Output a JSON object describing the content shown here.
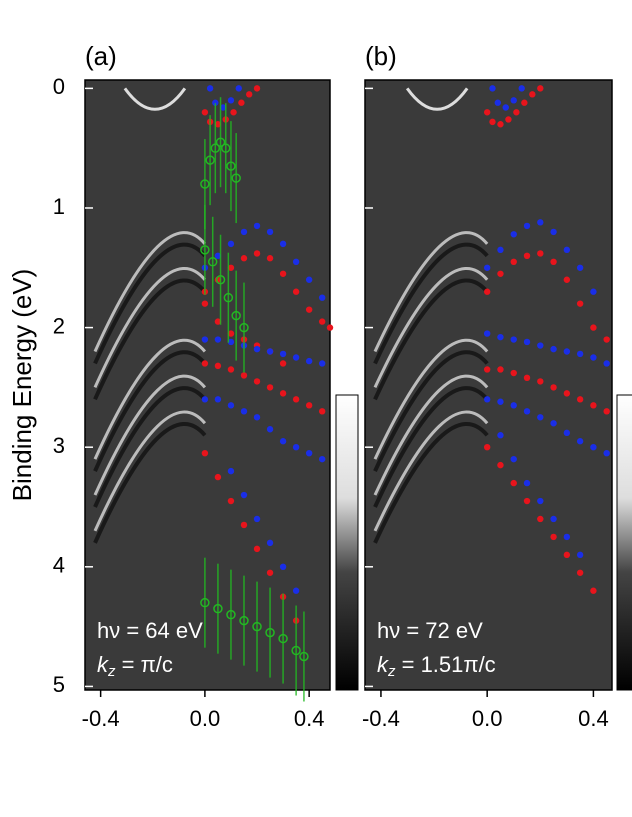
{
  "chart_data": [
    {
      "type": "scatter",
      "panel_label": "(a)",
      "y_label": "Binding Energy (eV)",
      "annotation_hv": "hν = 64 eV",
      "annotation_kz": [
        "k",
        "z",
        " = π/c"
      ],
      "xlim": [
        -0.46,
        0.48
      ],
      "ylim": [
        -0.07,
        5.03
      ],
      "y_reversed": true,
      "show_ytick_labels": true,
      "xticks": [
        -0.4,
        {
          "value": 0,
          "label": "0.0"
        },
        0.4
      ],
      "yticks": [
        0,
        1,
        2,
        3,
        4,
        5
      ],
      "series": [
        {
          "name": "red-top",
          "color": "#e8141c",
          "marker": "dot",
          "x": [
            0.0,
            0.02,
            0.05,
            0.08,
            0.11,
            0.14,
            0.17,
            0.2
          ],
          "y": [
            0.2,
            0.28,
            0.3,
            0.26,
            0.2,
            0.12,
            0.05,
            0.0
          ]
        },
        {
          "name": "blue-top",
          "color": "#1a2ee8",
          "marker": "dot",
          "x": [
            0.02,
            0.04,
            0.07,
            0.1,
            0.13
          ],
          "y": [
            0.0,
            0.12,
            0.16,
            0.1,
            0.0
          ]
        },
        {
          "name": "blue-1",
          "color": "#1a2ee8",
          "marker": "dot",
          "x": [
            0.0,
            0.05,
            0.1,
            0.15,
            0.2,
            0.25,
            0.3,
            0.35,
            0.4,
            0.45
          ],
          "y": [
            1.5,
            1.4,
            1.3,
            1.2,
            1.15,
            1.2,
            1.3,
            1.45,
            1.6,
            1.75
          ]
        },
        {
          "name": "red-1",
          "color": "#e8141c",
          "marker": "dot",
          "x": [
            0.0,
            0.05,
            0.1,
            0.15,
            0.2,
            0.25,
            0.3,
            0.35,
            0.4,
            0.45,
            0.48
          ],
          "y": [
            1.7,
            1.6,
            1.5,
            1.42,
            1.38,
            1.42,
            1.55,
            1.7,
            1.85,
            1.95,
            2.0
          ]
        },
        {
          "name": "red-2",
          "color": "#e8141c",
          "marker": "dot",
          "x": [
            0.0,
            0.05,
            0.1,
            0.15,
            0.2,
            0.25,
            0.3
          ],
          "y": [
            1.8,
            1.95,
            2.05,
            2.1,
            2.15,
            2.2,
            2.3
          ]
        },
        {
          "name": "blue-2",
          "color": "#1a2ee8",
          "marker": "dot",
          "x": [
            0.0,
            0.05,
            0.1,
            0.15,
            0.2,
            0.25,
            0.3,
            0.35,
            0.4,
            0.45
          ],
          "y": [
            2.1,
            2.1,
            2.12,
            2.15,
            2.18,
            2.2,
            2.22,
            2.25,
            2.28,
            2.3
          ]
        },
        {
          "name": "red-3",
          "color": "#e8141c",
          "marker": "dot",
          "x": [
            0.0,
            0.05,
            0.1,
            0.15,
            0.2,
            0.25,
            0.3,
            0.35,
            0.4,
            0.45
          ],
          "y": [
            2.3,
            2.32,
            2.35,
            2.4,
            2.45,
            2.5,
            2.55,
            2.6,
            2.65,
            2.7
          ]
        },
        {
          "name": "blue-3",
          "color": "#1a2ee8",
          "marker": "dot",
          "x": [
            0.0,
            0.05,
            0.1,
            0.15,
            0.2,
            0.25,
            0.3,
            0.35,
            0.4,
            0.45
          ],
          "y": [
            2.6,
            2.6,
            2.65,
            2.7,
            2.75,
            2.85,
            2.95,
            3.0,
            3.05,
            3.1
          ]
        },
        {
          "name": "red-4",
          "color": "#e8141c",
          "marker": "dot",
          "x": [
            0.0,
            0.05,
            0.1,
            0.15,
            0.2,
            0.25,
            0.3,
            0.35
          ],
          "y": [
            3.05,
            3.25,
            3.45,
            3.65,
            3.85,
            4.05,
            4.25,
            4.45
          ]
        },
        {
          "name": "blue-4",
          "color": "#1a2ee8",
          "marker": "dot",
          "x": [
            0.1,
            0.15,
            0.2,
            0.25,
            0.3,
            0.35
          ],
          "y": [
            3.2,
            3.4,
            3.6,
            3.8,
            4.0,
            4.2
          ]
        },
        {
          "name": "green-top",
          "color": "#22b822",
          "marker": "circle",
          "x": [
            0.0,
            0.02,
            0.04,
            0.06,
            0.08,
            0.1,
            0.12
          ],
          "y": [
            0.8,
            0.6,
            0.5,
            0.45,
            0.5,
            0.65,
            0.75
          ]
        },
        {
          "name": "green-mid",
          "color": "#22b822",
          "marker": "circle",
          "x": [
            0.0,
            0.03,
            0.06,
            0.09,
            0.12,
            0.15
          ],
          "y": [
            1.35,
            1.45,
            1.6,
            1.75,
            1.9,
            2.0
          ]
        },
        {
          "name": "green-low",
          "color": "#22b822",
          "marker": "circle",
          "x": [
            0.0,
            0.05,
            0.1,
            0.15,
            0.2,
            0.25,
            0.3,
            0.35,
            0.38
          ],
          "y": [
            4.3,
            4.35,
            4.4,
            4.45,
            4.5,
            4.55,
            4.6,
            4.7,
            4.75
          ]
        }
      ]
    },
    {
      "type": "scatter",
      "panel_label": "(b)",
      "annotation_hv": "hν = 72 eV",
      "annotation_kz": [
        "k",
        "z",
        " = 1.51π/c"
      ],
      "xlim": [
        -0.46,
        0.47
      ],
      "ylim": [
        -0.07,
        5.03
      ],
      "y_reversed": true,
      "show_ytick_labels": false,
      "xticks": [
        -0.4,
        {
          "value": 0,
          "label": "0.0"
        },
        0.4
      ],
      "yticks": [
        0,
        1,
        2,
        3,
        4,
        5
      ],
      "series": [
        {
          "name": "red-top",
          "color": "#e8141c",
          "marker": "dot",
          "x": [
            0.0,
            0.02,
            0.05,
            0.08,
            0.11,
            0.14,
            0.17,
            0.2
          ],
          "y": [
            0.2,
            0.28,
            0.3,
            0.26,
            0.2,
            0.12,
            0.05,
            0.0
          ]
        },
        {
          "name": "blue-top",
          "color": "#1a2ee8",
          "marker": "dot",
          "x": [
            0.02,
            0.04,
            0.07,
            0.1,
            0.13
          ],
          "y": [
            0.0,
            0.12,
            0.16,
            0.1,
            0.0
          ]
        },
        {
          "name": "blue-1",
          "color": "#1a2ee8",
          "marker": "dot",
          "x": [
            0.0,
            0.05,
            0.1,
            0.15,
            0.2,
            0.25,
            0.3,
            0.35,
            0.4
          ],
          "y": [
            1.5,
            1.35,
            1.22,
            1.15,
            1.12,
            1.2,
            1.35,
            1.5,
            1.7
          ]
        },
        {
          "name": "red-1",
          "color": "#e8141c",
          "marker": "dot",
          "x": [
            0.0,
            0.05,
            0.1,
            0.15,
            0.2,
            0.25,
            0.3,
            0.35,
            0.4,
            0.45
          ],
          "y": [
            1.7,
            1.55,
            1.45,
            1.4,
            1.38,
            1.45,
            1.6,
            1.8,
            2.0,
            2.1
          ]
        },
        {
          "name": "blue-2",
          "color": "#1a2ee8",
          "marker": "dot",
          "x": [
            0.0,
            0.05,
            0.1,
            0.15,
            0.2,
            0.25,
            0.3,
            0.35,
            0.4,
            0.45
          ],
          "y": [
            2.05,
            2.08,
            2.1,
            2.12,
            2.15,
            2.18,
            2.2,
            2.22,
            2.25,
            2.3
          ]
        },
        {
          "name": "red-2",
          "color": "#e8141c",
          "marker": "dot",
          "x": [
            0.0,
            0.05,
            0.1,
            0.15,
            0.2,
            0.25,
            0.3,
            0.35,
            0.4,
            0.45
          ],
          "y": [
            2.35,
            2.35,
            2.38,
            2.42,
            2.45,
            2.5,
            2.55,
            2.6,
            2.65,
            2.7
          ]
        },
        {
          "name": "blue-3",
          "color": "#1a2ee8",
          "marker": "dot",
          "x": [
            0.0,
            0.05,
            0.1,
            0.15,
            0.2,
            0.25,
            0.3,
            0.35,
            0.4,
            0.45
          ],
          "y": [
            2.6,
            2.62,
            2.65,
            2.7,
            2.75,
            2.8,
            2.88,
            2.95,
            3.0,
            3.05
          ]
        },
        {
          "name": "red-3",
          "color": "#e8141c",
          "marker": "dot",
          "x": [
            0.0,
            0.05,
            0.1,
            0.15,
            0.2,
            0.25,
            0.3,
            0.35,
            0.4
          ],
          "y": [
            3.0,
            3.15,
            3.3,
            3.45,
            3.6,
            3.75,
            3.9,
            4.05,
            4.2
          ]
        },
        {
          "name": "blue-4",
          "color": "#1a2ee8",
          "marker": "dot",
          "x": [
            0.05,
            0.1,
            0.15,
            0.2,
            0.25,
            0.3,
            0.35
          ],
          "y": [
            2.9,
            3.1,
            3.3,
            3.45,
            3.6,
            3.75,
            3.9
          ]
        }
      ]
    }
  ]
}
